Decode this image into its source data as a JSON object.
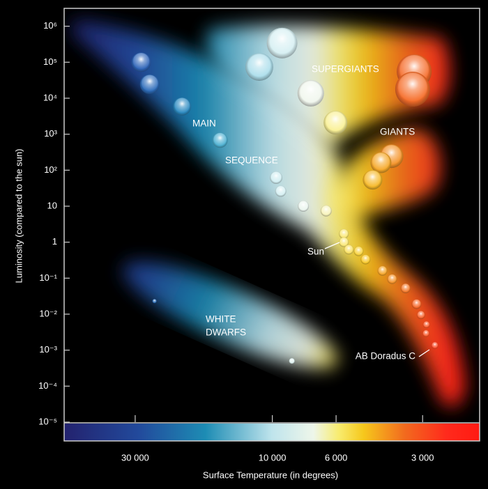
{
  "chart_data": {
    "type": "scatter",
    "x_label": "Surface Temperature (in degrees)",
    "y_label": "Luminosity (compared to the sun)",
    "xscale": "log",
    "yscale": "log",
    "xlim": [
      53000,
      1900
    ],
    "ylim": [
      1e-05,
      3000000
    ],
    "xticks": [
      {
        "value": 30000,
        "label": "30 000"
      },
      {
        "value": 10000,
        "label": "10 000"
      },
      {
        "value": 6000,
        "label": "6 000"
      },
      {
        "value": 3000,
        "label": "3 000"
      }
    ],
    "yticks": [
      {
        "value": 1e-05,
        "label": "10⁻⁵"
      },
      {
        "value": 0.0001,
        "label": "10⁻⁴"
      },
      {
        "value": 0.001,
        "label": "10⁻³"
      },
      {
        "value": 0.01,
        "label": "10⁻²"
      },
      {
        "value": 0.1,
        "label": "10⁻¹"
      },
      1,
      10,
      {
        "value": 100,
        "label": "10²"
      },
      {
        "value": 1000,
        "label": "10³"
      },
      {
        "value": 10000,
        "label": "10⁴"
      },
      {
        "value": 100000,
        "label": "10⁵"
      },
      {
        "value": 1000000,
        "label": "10⁶"
      }
    ],
    "grid": false,
    "x": [
      28600,
      26700,
      20600,
      15200,
      9700,
      9350,
      7800,
      6500,
      5640,
      5640,
      5420,
      5010,
      4740,
      4140,
      3830,
      3440,
      3150,
      3040,
      2910,
      2920,
      2720,
      9250,
      11100,
      7350,
      6030,
      3210,
      3250,
      3850,
      4190,
      4480,
      25700,
      8550
    ],
    "values": [
      100000,
      24500,
      5900,
      680,
      62,
      26,
      10,
      7.4,
      1.7,
      1,
      0.62,
      0.56,
      0.33,
      0.16,
      0.094,
      0.052,
      0.019,
      0.0095,
      0.0051,
      0.0029,
      0.00135,
      340000,
      74000,
      13700,
      2100,
      55000,
      17800,
      245,
      162,
      54,
      0.023,
      0.0005
    ],
    "sizes": [
      14,
      14,
      13,
      11,
      9,
      8,
      8,
      8,
      7,
      7,
      7,
      7,
      7,
      7,
      7,
      7,
      7,
      6,
      5,
      5,
      5,
      22,
      20,
      19,
      17,
      25,
      25,
      17,
      15,
      14,
      3,
      4
    ],
    "annotations": [
      "SUPERGIANTS",
      "GIANTS",
      "MAIN",
      "SEQUENCE",
      "WHITE",
      "DWARFS",
      "Sun",
      "AB Doradus C"
    ]
  }
}
